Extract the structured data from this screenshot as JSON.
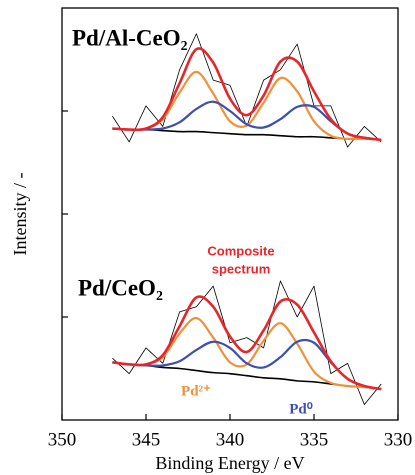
{
  "chart_data": {
    "type": "line",
    "xlabel": "Binding Energy / eV",
    "ylabel": "Intensity / -",
    "xlim": [
      350,
      330
    ],
    "xticks": [
      350,
      345,
      340,
      335,
      330
    ],
    "ylim": [
      0,
      4
    ],
    "yticks": [
      1,
      2,
      3
    ],
    "x": [
      347,
      346,
      345,
      344,
      343,
      342,
      341,
      340,
      339,
      338,
      337,
      336,
      335,
      334,
      333,
      332,
      331
    ],
    "panels": [
      {
        "label": "Pd/Al-CeO₂",
        "series": [
          {
            "color": "#000000",
            "values": [
              2.95,
              2.7,
              3.05,
              2.85,
              3.4,
              3.75,
              3.3,
              3.25,
              2.85,
              3.3,
              3.4,
              3.65,
              3.05,
              3.05,
              2.65,
              2.85,
              2.7
            ]
          },
          {
            "color": "#000000",
            "values": [
              2.83,
              2.82,
              2.82,
              2.81,
              2.8,
              2.8,
              2.79,
              2.78,
              2.77,
              2.77,
              2.76,
              2.75,
              2.75,
              2.74,
              2.73,
              2.73,
              2.72
            ]
          },
          {
            "color": "#f0913a",
            "values": [
              2.83,
              2.82,
              2.83,
              2.92,
              3.18,
              3.38,
              3.17,
              2.9,
              2.86,
              3.08,
              3.32,
              3.19,
              2.9,
              2.76,
              2.73,
              2.73,
              2.72
            ]
          },
          {
            "color": "#3f4fae",
            "values": [
              2.83,
              2.82,
              2.82,
              2.83,
              2.89,
              3.02,
              3.09,
              3.0,
              2.87,
              2.84,
              2.92,
              3.04,
              3.04,
              2.9,
              2.78,
              2.74,
              2.72
            ]
          },
          {
            "color": "#e8262a",
            "values": [
              2.83,
              2.82,
              2.83,
              2.94,
              3.27,
              3.6,
              3.47,
              3.12,
              2.96,
              3.15,
              3.48,
              3.48,
              3.19,
              2.92,
              2.78,
              2.74,
              2.72
            ]
          }
        ]
      },
      {
        "label": "Pd/CeO₂",
        "series": [
          {
            "color": "#000000",
            "values": [
              0.6,
              0.45,
              0.7,
              0.55,
              1.05,
              1.1,
              1.3,
              0.75,
              0.8,
              0.7,
              1.35,
              1.0,
              1.3,
              0.45,
              0.55,
              0.15,
              0.35
            ]
          },
          {
            "color": "#000000",
            "values": [
              0.56,
              0.54,
              0.53,
              0.51,
              0.5,
              0.48,
              0.46,
              0.45,
              0.43,
              0.41,
              0.4,
              0.38,
              0.37,
              0.35,
              0.33,
              0.32,
              0.3
            ]
          },
          {
            "color": "#f0913a",
            "values": [
              0.56,
              0.54,
              0.54,
              0.61,
              0.84,
              0.99,
              0.8,
              0.56,
              0.54,
              0.77,
              0.94,
              0.74,
              0.47,
              0.36,
              0.33,
              0.32,
              0.3
            ]
          },
          {
            "color": "#3f4fae",
            "values": [
              0.56,
              0.54,
              0.53,
              0.53,
              0.57,
              0.68,
              0.76,
              0.7,
              0.55,
              0.51,
              0.61,
              0.76,
              0.75,
              0.56,
              0.4,
              0.33,
              0.3
            ]
          },
          {
            "color": "#e8262a",
            "values": [
              0.56,
              0.54,
              0.54,
              0.63,
              0.91,
              1.19,
              1.1,
              0.81,
              0.66,
              0.87,
              1.15,
              1.12,
              0.85,
              0.57,
              0.4,
              0.33,
              0.3
            ]
          }
        ]
      }
    ],
    "annotations": [
      {
        "text": "Composite",
        "color": "#e8262a"
      },
      {
        "text": "spectrum",
        "color": "#e8262a"
      },
      {
        "text": "Pd²⁺",
        "color": "#f0913a"
      },
      {
        "text": "Pd⁰",
        "color": "#3f4fae"
      }
    ]
  }
}
